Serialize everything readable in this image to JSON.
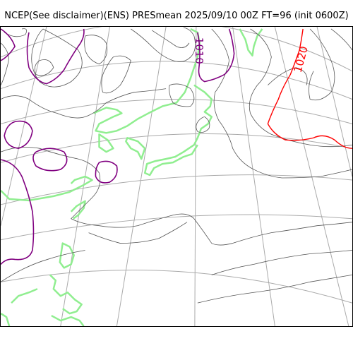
{
  "title": "NCEP(See disclaimer)(ENS) PRESmean 2025/09/10 00Z FT=96 (init 0600Z)",
  "map": {
    "contour_labels": [
      "1010",
      "1020"
    ],
    "colors": {
      "graticule": "#aaaaaa",
      "coastline": "#90ee90",
      "isobar": "#555555",
      "isobar_1010": "#800080",
      "isobar_1020": "#ff0000"
    }
  }
}
